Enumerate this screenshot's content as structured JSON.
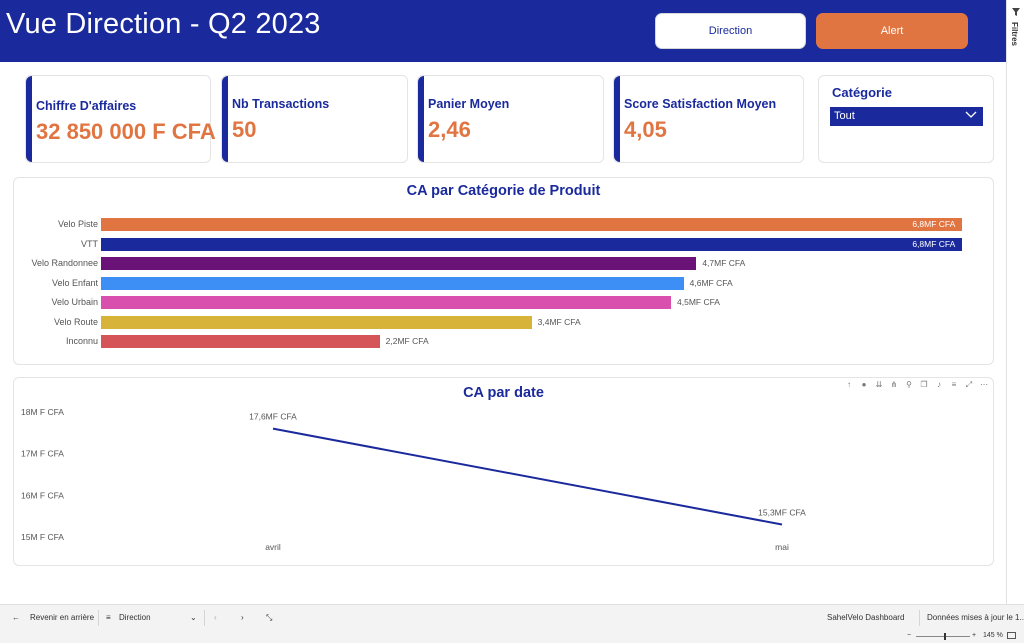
{
  "header": {
    "title": "Vue Direction - Q2 2023",
    "buttons": {
      "direction": "Direction",
      "alert": "Alert"
    }
  },
  "filter_pane": {
    "label": "Filtres"
  },
  "kpis": [
    {
      "label": "Chiffre D'affaires",
      "value": "32 850 000 F CFA"
    },
    {
      "label": "Nb Transactions",
      "value": "50"
    },
    {
      "label": "Panier Moyen",
      "value": "2,46"
    },
    {
      "label": "Score Satisfaction Moyen",
      "value": "4,05"
    }
  ],
  "slicer": {
    "title": "Catégorie",
    "selected": "Tout"
  },
  "chart_data": [
    {
      "type": "bar",
      "orientation": "horizontal",
      "title": "CA par Catégorie de Produit",
      "categories": [
        "Velo Piste",
        "VTT",
        "Velo Randonnee",
        "Velo Enfant",
        "Velo Urbain",
        "Velo Route",
        "Inconnu"
      ],
      "values": [
        6.8,
        6.8,
        4.7,
        4.6,
        4.5,
        3.4,
        2.2
      ],
      "value_unit": "MF CFA",
      "data_labels": [
        "6,8MF CFA",
        "6,8MF CFA",
        "4,7MF CFA",
        "4,6MF CFA",
        "4,5MF CFA",
        "3,4MF CFA",
        "2,2MF CFA"
      ],
      "colors": [
        "#e07542",
        "#1a2a9c",
        "#6b1279",
        "#3d8ff5",
        "#d94fae",
        "#d8b33a",
        "#d45458"
      ],
      "xlim": [
        0,
        6.9
      ],
      "grid": false
    },
    {
      "type": "line",
      "title": "CA par date",
      "x": [
        "avril",
        "mai"
      ],
      "values": [
        17.6,
        15.3
      ],
      "data_labels": [
        "17,6MF CFA",
        "15,3MF CFA"
      ],
      "y_ticks": [
        "18M F CFA",
        "17M F CFA",
        "16M F CFA",
        "15M F CFA"
      ],
      "ylim": [
        15,
        18
      ],
      "color": "#1a2a9c",
      "grid": false
    }
  ],
  "bottombar": {
    "back": "Revenir en arrière",
    "page_selector": "Direction",
    "report_name": "SahelVelo Dashboard",
    "update_info": "Données mises à jour le 1..."
  },
  "statusbar": {
    "zoom": "145 %"
  }
}
